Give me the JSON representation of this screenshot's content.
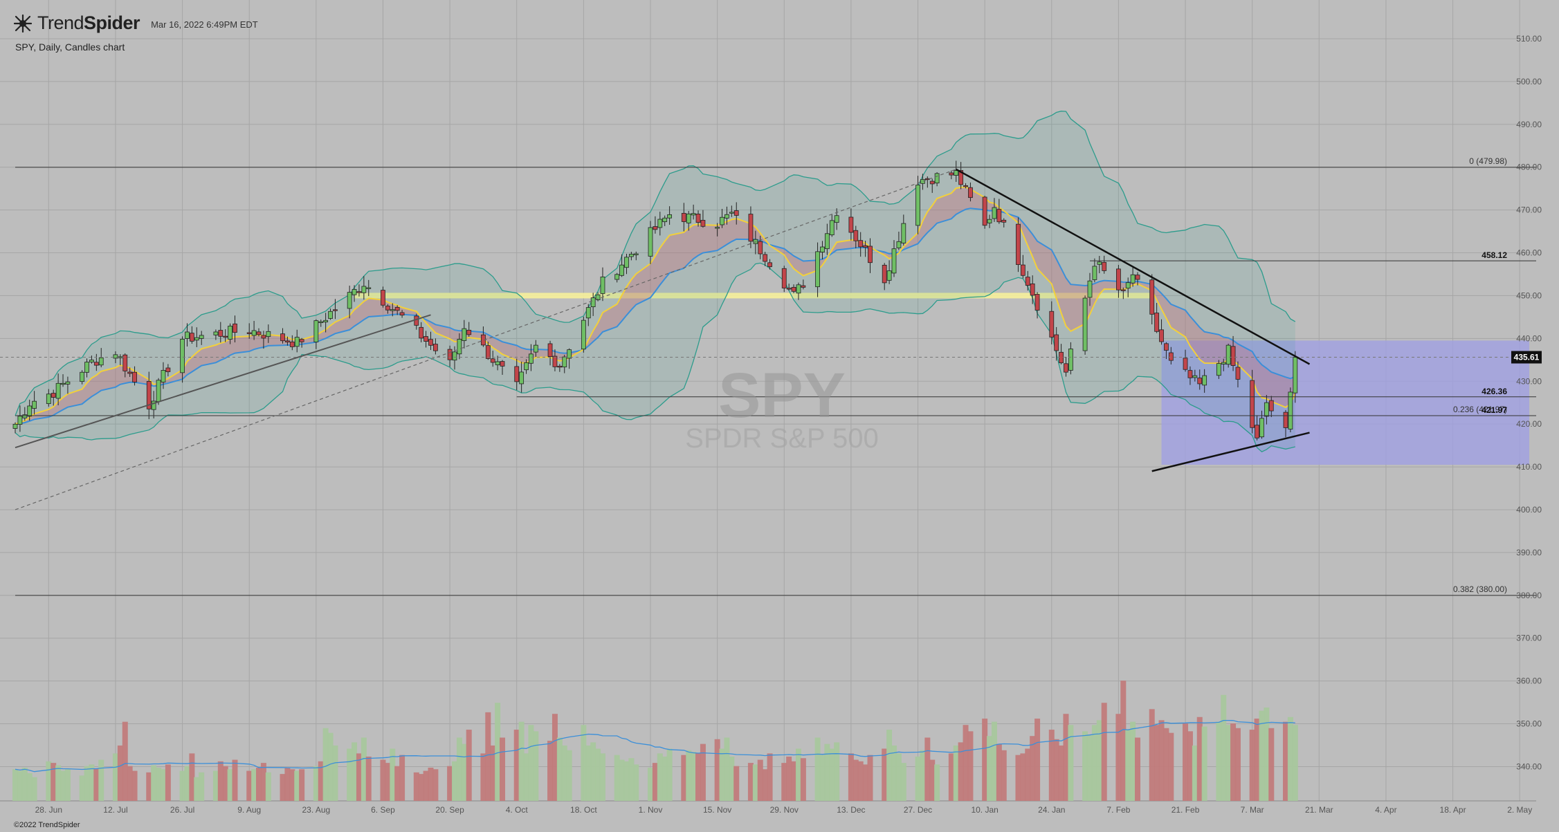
{
  "header": {
    "brand_light": "Trend",
    "brand_bold": "Spider",
    "timestamp": "Mar 16, 2022 6:49PM EDT",
    "description": "SPY, Daily, Candles chart",
    "copyright": "©2022 TrendSpider"
  },
  "watermark": {
    "symbol": "SPY",
    "name": "SPDR S&P 500"
  },
  "colors": {
    "background": "#bdbdbd",
    "grid": "#a6a6a6",
    "up_candle": "#6fbf65",
    "down_candle": "#c2454a",
    "ema_fast": "#f2d03b",
    "ema_slow": "#3b8fd9",
    "bollinger": "#2c9c8c",
    "rectangle": "#9f9fe6",
    "zone": "#f6f09a"
  },
  "chart_data": {
    "type": "candlestick",
    "symbol": "SPY",
    "interval": "Daily",
    "y_axis": {
      "min": 332,
      "max": 515,
      "ticks": [
        510,
        500,
        490,
        480,
        470,
        460,
        450,
        440,
        430,
        420,
        410,
        400,
        390,
        380,
        370,
        360,
        350,
        340
      ],
      "label_suffix": ".00"
    },
    "x_axis": {
      "start": "2021-06-21",
      "end": "2022-05-04",
      "ticks": [
        "28. Jun",
        "12. Jul",
        "26. Jul",
        "9. Aug",
        "23. Aug",
        "6. Sep",
        "20. Sep",
        "4. Oct",
        "18. Oct",
        "1. Nov",
        "15. Nov",
        "29. Nov",
        "13. Dec",
        "27. Dec",
        "10. Jan",
        "24. Jan",
        "7. Feb",
        "21. Feb",
        "7. Mar",
        "21. Mar",
        "4. Apr",
        "18. Apr",
        "2. May"
      ]
    },
    "price_tag": "435.61",
    "fib_levels": [
      {
        "label": "0 (479.98)",
        "value": 479.98
      },
      {
        "label": "0.236 (421.97)",
        "value": 421.97
      },
      {
        "label": "0.382 (380.00)",
        "value": 380.0
      }
    ],
    "level_labels": [
      {
        "label": "458.12",
        "value": 458.12
      },
      {
        "label": "426.36",
        "value": 426.36
      },
      {
        "label": "421.97",
        "value": 421.97
      }
    ],
    "anchors": [
      {
        "date": "2021-06-21",
        "price": 420.0
      },
      {
        "date": "2021-06-24",
        "price": 425.0
      },
      {
        "date": "2021-06-29",
        "price": 427.5
      },
      {
        "date": "2021-07-07",
        "price": 434.5
      },
      {
        "date": "2021-07-12",
        "price": 437.0
      },
      {
        "date": "2021-07-19",
        "price": 424.5
      },
      {
        "date": "2021-07-26",
        "price": 440.0
      },
      {
        "date": "2021-08-09",
        "price": 442.0
      },
      {
        "date": "2021-08-19",
        "price": 439.0
      },
      {
        "date": "2021-08-23",
        "price": 443.0
      },
      {
        "date": "2021-09-02",
        "price": 453.0
      },
      {
        "date": "2021-09-10",
        "price": 445.0
      },
      {
        "date": "2021-09-20",
        "price": 434.0
      },
      {
        "date": "2021-09-23",
        "price": 443.0
      },
      {
        "date": "2021-10-04",
        "price": 428.5
      },
      {
        "date": "2021-10-08",
        "price": 438.0
      },
      {
        "date": "2021-10-13",
        "price": 434.0
      },
      {
        "date": "2021-10-22",
        "price": 453.0
      },
      {
        "date": "2021-11-05",
        "price": 469.0
      },
      {
        "date": "2021-11-15",
        "price": 467.0
      },
      {
        "date": "2021-11-18",
        "price": 469.0
      },
      {
        "date": "2021-11-26",
        "price": 458.0
      },
      {
        "date": "2021-12-01",
        "price": 450.0
      },
      {
        "date": "2021-12-03",
        "price": 453.0
      },
      {
        "date": "2021-12-10",
        "price": 470.0
      },
      {
        "date": "2021-12-20",
        "price": 454.0
      },
      {
        "date": "2021-12-27",
        "price": 477.0
      },
      {
        "date": "2022-01-04",
        "price": 478.5
      },
      {
        "date": "2022-01-10",
        "price": 466.0
      },
      {
        "date": "2022-01-12",
        "price": 471.0
      },
      {
        "date": "2022-01-18",
        "price": 456.0
      },
      {
        "date": "2022-01-24",
        "price": 440.0
      },
      {
        "date": "2022-01-27",
        "price": 432.0
      },
      {
        "date": "2022-02-02",
        "price": 458.0
      },
      {
        "date": "2022-02-08",
        "price": 450.0
      },
      {
        "date": "2022-02-10",
        "price": 455.0
      },
      {
        "date": "2022-02-18",
        "price": 434.0
      },
      {
        "date": "2022-02-24",
        "price": 429.0
      },
      {
        "date": "2022-03-02",
        "price": 437.0
      },
      {
        "date": "2022-03-08",
        "price": 416.0
      },
      {
        "date": "2022-03-10",
        "price": 425.0
      },
      {
        "date": "2022-03-14",
        "price": 418.0
      },
      {
        "date": "2022-03-16",
        "price": 435.61
      }
    ],
    "volume_axis": {
      "min": 0,
      "max": 160
    },
    "volume": [
      40,
      38,
      42,
      35,
      30,
      50,
      48,
      45,
      38,
      40,
      32,
      44,
      46,
      41,
      52,
      60,
      70,
      100,
      44,
      38,
      36,
      45,
      42,
      40,
      46,
      38,
      44,
      60,
      30,
      36,
      38,
      50,
      44,
      40,
      52,
      38,
      40,
      42,
      48,
      36,
      34,
      42,
      40,
      38,
      40,
      44,
      50,
      92,
      86,
      70,
      66,
      74,
      60,
      80,
      56,
      52,
      48,
      66,
      44,
      58,
      36,
      34,
      38,
      42,
      40,
      44,
      50,
      80,
      72,
      90,
      60,
      112,
      70,
      124,
      80,
      90,
      100,
      60,
      96,
      88,
      76,
      110,
      80,
      70,
      64,
      96,
      70,
      74,
      66,
      60,
      58,
      52,
      50,
      54,
      46,
      42,
      48,
      60,
      56,
      66,
      58,
      64,
      62,
      60,
      72,
      78,
      66,
      80,
      56,
      44,
      48,
      46,
      52,
      40,
      60,
      48,
      56,
      50,
      66,
      54,
      80,
      58,
      72,
      66,
      74,
      60,
      52,
      50,
      46,
      58,
      66,
      90,
      70,
      60,
      48,
      56,
      64,
      80,
      52,
      46,
      60,
      70,
      74,
      96,
      88,
      104,
      82,
      100,
      72,
      64,
      58,
      60,
      66,
      82,
      104,
      90,
      78,
      70,
      110,
      96,
      88,
      84,
      96,
      102,
      124,
      110,
      152,
      90,
      100,
      80,
      116,
      96,
      102,
      92,
      86,
      98,
      88,
      70,
      106,
      94,
      100,
      134,
      96,
      98,
      92,
      90,
      104,
      114,
      118,
      92,
      100,
      106,
      96,
      88,
      104,
      100,
      110,
      96,
      118,
      104,
      122,
      96,
      110,
      92
    ]
  },
  "drawings": {
    "zone_price": 450.0,
    "zone_from": "2021-08-31",
    "zone_to": "2022-02-14",
    "rect_from": "2022-02-16",
    "rect_to": "2022-05-04",
    "rect_top": 439.5,
    "rect_bottom": 410.5,
    "horizontals": [
      {
        "price": 479.98,
        "from": "2021-06-21"
      },
      {
        "price": 458.12,
        "from": "2022-02-01"
      },
      {
        "price": 426.36,
        "from": "2021-10-04"
      },
      {
        "price": 421.97,
        "from": "2021-06-21"
      },
      {
        "price": 380.0,
        "from": "2021-06-21"
      }
    ],
    "down_trend": [
      {
        "date": "2022-01-04",
        "price": 479.5
      },
      {
        "date": "2022-03-19",
        "price": 434.0
      }
    ],
    "up_trend": [
      {
        "date": "2022-02-14",
        "price": 409.0
      },
      {
        "date": "2022-03-19",
        "price": 418.0
      }
    ],
    "up_trend_2021": [
      {
        "date": "2021-06-21",
        "price": 414.5
      },
      {
        "date": "2021-09-16",
        "price": 445.5
      }
    ],
    "dashed": [
      {
        "date": "2021-06-21",
        "price": 400.0
      },
      {
        "date": "2022-01-04",
        "price": 479.5
      }
    ]
  }
}
